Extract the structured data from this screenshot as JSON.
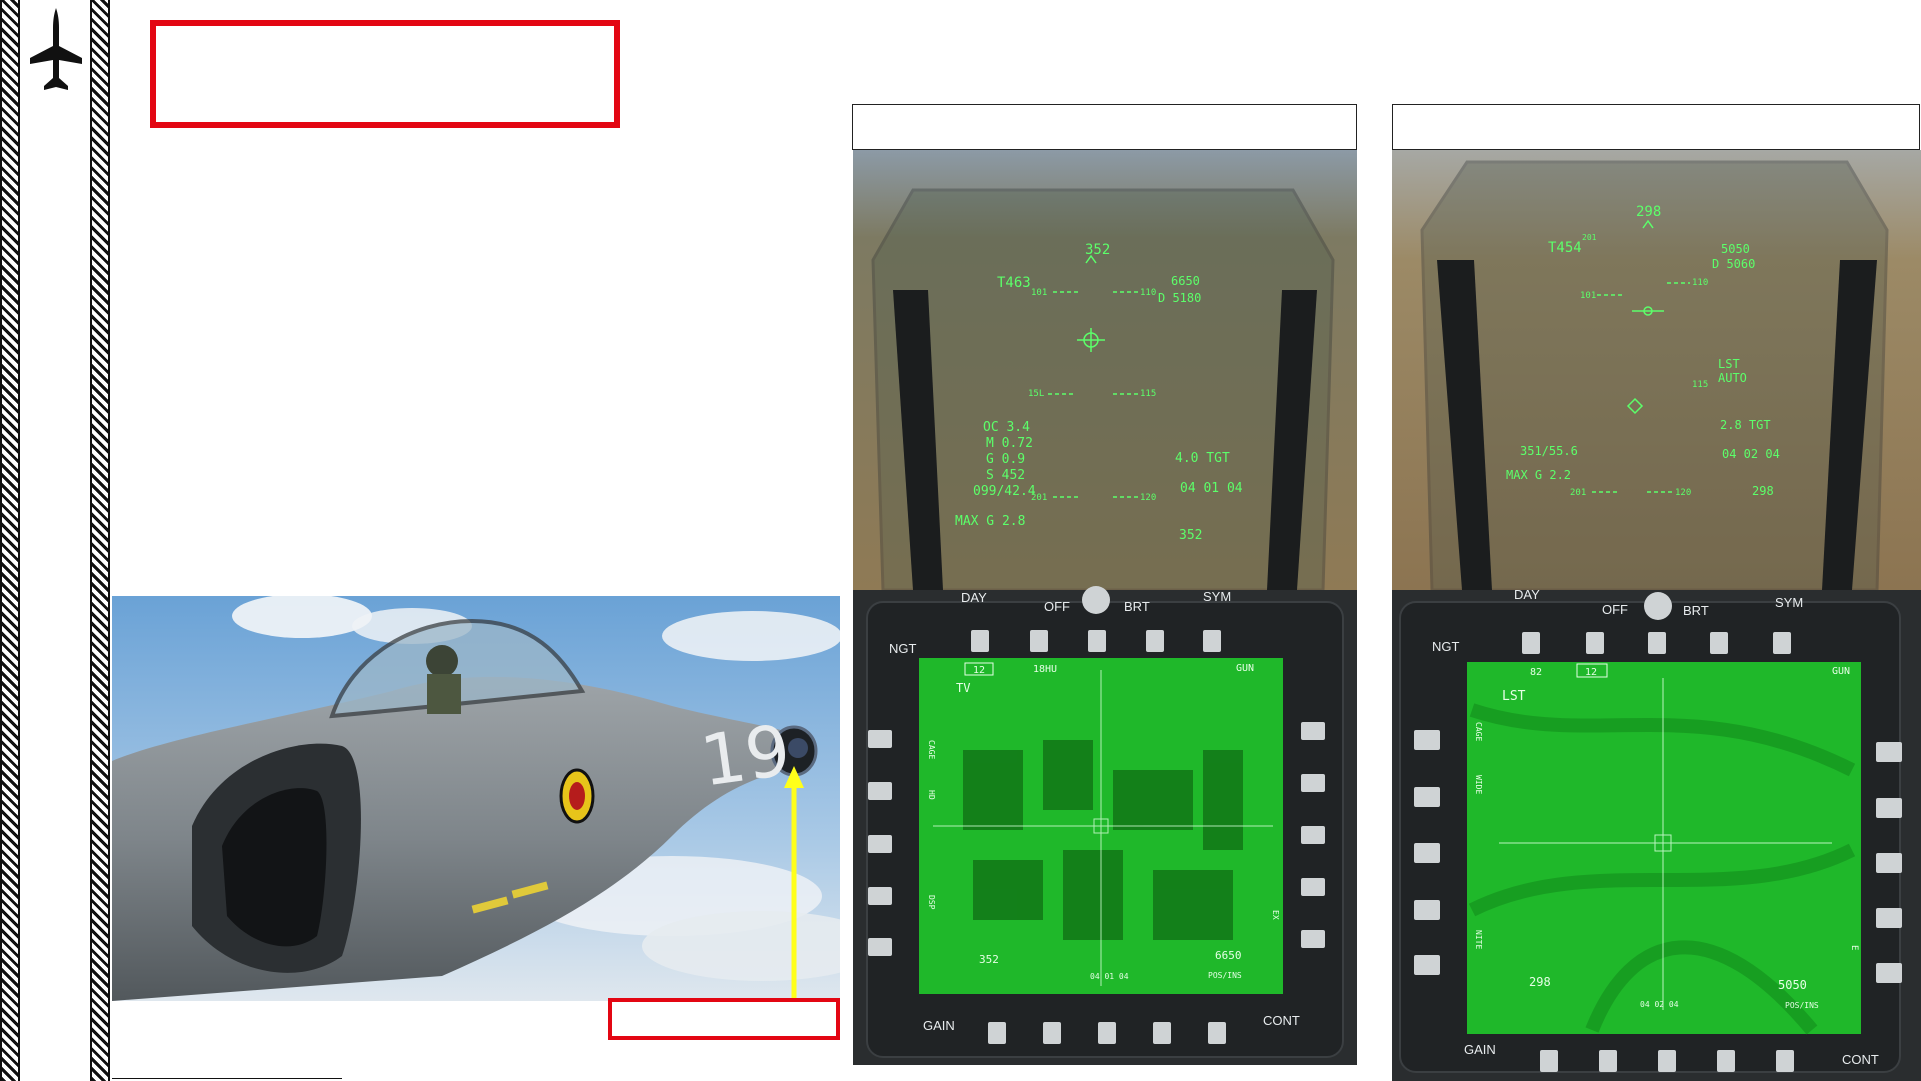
{
  "page": {
    "title_text": "",
    "callout_text": "",
    "footer_text": ""
  },
  "left_panel": {
    "caption": ""
  },
  "right_panel": {
    "caption": ""
  },
  "aircraft": {
    "tail_number": "19"
  },
  "hud_left": {
    "heading": "352",
    "heading_bottom": "352",
    "target_heading": "T463",
    "distance_top": "6650",
    "distance": "D 5180",
    "aoa": "OC 3.4",
    "mach": "M 0.72",
    "g": "G 0.9",
    "speed": "S 452",
    "bearing": "099/42.4",
    "max_g": "MAX G 2.8",
    "range": "4.0 TGT",
    "time": "04 01 04",
    "ladder_top_left": "101",
    "ladder_top_right": "110",
    "ladder_mid_left": "15L",
    "ladder_mid_right": "115",
    "ladder_low_left": "201",
    "ladder_low_right": "120"
  },
  "hud_right": {
    "heading": "298",
    "target_heading": "T454",
    "distance_top": "5050",
    "distance": "D 5060",
    "mode_line1": "LST",
    "mode_line2": "AUTO",
    "range": "2.8 TGT",
    "time": "04 02 04",
    "heading_bottom": "298",
    "max_g": "MAX G 2.2",
    "bearing": "351/55.6",
    "ladder_low_left": "201",
    "ladder_low_right": "120",
    "ladder_mid_right": "115",
    "ladder_top_left": "101",
    "ladder_top_right": "110",
    "small": "201"
  },
  "mpcd_left": {
    "label_day": "DAY",
    "label_off": "OFF",
    "label_brt": "BRT",
    "label_sym": "SYM",
    "label_ngt": "NGT",
    "label_gain": "GAIN",
    "label_cont": "CONT",
    "screen_box": "12",
    "screen_top_mid": "18HU",
    "screen_top_right": "GUN",
    "screen_mode": "TV",
    "screen_side_left1": "CAGE",
    "screen_side_left2": "HD",
    "screen_side_left3": "DSP",
    "screen_side_right": "EX",
    "screen_heading": "352",
    "screen_distance": "6650",
    "screen_time": "04 01 04",
    "screen_pos": "POS/INS"
  },
  "mpcd_right": {
    "label_day": "DAY",
    "label_off": "OFF",
    "label_brt": "BRT",
    "label_sym": "SYM",
    "label_ngt": "NGT",
    "label_gain": "GAIN",
    "label_cont": "CONT",
    "screen_box": "12",
    "screen_top_left": "82",
    "screen_top_right": "GUN",
    "screen_mode": "LST",
    "screen_side_left1": "CAGE",
    "screen_side_left2": "WIDE",
    "screen_side_left3": "NITE",
    "screen_side_right": "E",
    "screen_heading": "298",
    "screen_distance": "5050",
    "screen_time": "04 02 04",
    "screen_pos": "POS/INS"
  },
  "colors": {
    "accent_red": "#e30613",
    "hud_green": "#5cff6a",
    "screen_green": "#1fb82a",
    "callout_yellow": "#ffff1a"
  }
}
